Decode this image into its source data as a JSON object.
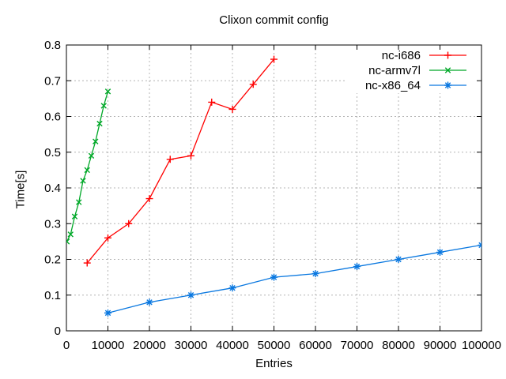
{
  "chart_data": {
    "type": "line",
    "title": "Clixon commit config",
    "xlabel": "Entries",
    "ylabel": "Time[s]",
    "xlim": [
      0,
      100000
    ],
    "ylim": [
      0,
      0.8
    ],
    "grid": true,
    "legend_position": "top-right-inside",
    "xticks": {
      "values": [
        0,
        10000,
        20000,
        30000,
        40000,
        50000,
        60000,
        70000,
        80000,
        90000,
        100000
      ],
      "labels": [
        "0",
        "10000",
        "20000",
        "30000",
        "40000",
        "50000",
        "60000",
        "70000",
        "80000",
        "90000",
        "100000"
      ]
    },
    "yticks": {
      "values": [
        0,
        0.1,
        0.2,
        0.3,
        0.4,
        0.5,
        0.6,
        0.7,
        0.8
      ],
      "labels": [
        "0",
        "0.1",
        "0.2",
        "0.3",
        "0.4",
        "0.5",
        "0.6",
        "0.7",
        "0.8"
      ]
    },
    "series": [
      {
        "name": "nc-i686",
        "color": "#ff0000",
        "marker": "plus",
        "points": [
          [
            5000,
            0.19
          ],
          [
            10000,
            0.26
          ],
          [
            15000,
            0.3
          ],
          [
            20000,
            0.37
          ],
          [
            25000,
            0.48
          ],
          [
            30000,
            0.49
          ],
          [
            35000,
            0.64
          ],
          [
            40000,
            0.62
          ],
          [
            45000,
            0.69
          ],
          [
            50000,
            0.76
          ]
        ]
      },
      {
        "name": "nc-armv7l",
        "color": "#00a828",
        "marker": "cross",
        "points": [
          [
            100,
            0.25
          ],
          [
            1000,
            0.27
          ],
          [
            2000,
            0.32
          ],
          [
            3000,
            0.36
          ],
          [
            4000,
            0.42
          ],
          [
            5000,
            0.45
          ],
          [
            6000,
            0.49
          ],
          [
            7000,
            0.53
          ],
          [
            8000,
            0.58
          ],
          [
            9000,
            0.63
          ],
          [
            10000,
            0.67
          ]
        ]
      },
      {
        "name": "nc-x86_64",
        "color": "#0a78e0",
        "marker": "asterisk",
        "points": [
          [
            10000,
            0.05
          ],
          [
            20000,
            0.08
          ],
          [
            30000,
            0.1
          ],
          [
            40000,
            0.12
          ],
          [
            50000,
            0.15
          ],
          [
            60000,
            0.16
          ],
          [
            70000,
            0.18
          ],
          [
            80000,
            0.2
          ],
          [
            90000,
            0.22
          ],
          [
            100000,
            0.24
          ]
        ]
      }
    ],
    "colors": {
      "frame": "#000000",
      "grid": "#b4b4b4",
      "background": "#ffffff",
      "text": "#000000"
    }
  }
}
